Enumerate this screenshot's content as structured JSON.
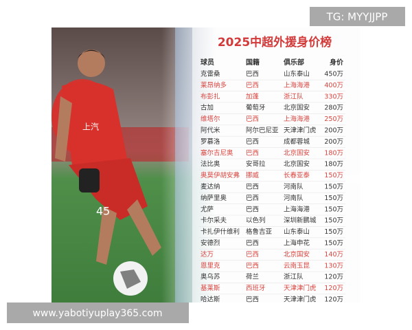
{
  "title": "2025中超外援身价榜",
  "watermark_top": "TG: MYYJJPP",
  "watermark_bottom": "www.yabotiyuplay365.com",
  "jersey_text": "上汽",
  "jersey_number": "45",
  "table": {
    "header": [
      "球员",
      "国籍",
      "俱乐部",
      "身价"
    ],
    "rows": [
      {
        "cells": [
          "克雷桑",
          "巴西",
          "山东泰山",
          "450万"
        ],
        "highlight": false
      },
      {
        "cells": [
          "莱昂纳多",
          "巴西",
          "上海海港",
          "400万"
        ],
        "highlight": true
      },
      {
        "cells": [
          "布彭扎",
          "加蓬",
          "浙江队",
          "330万"
        ],
        "highlight": true
      },
      {
        "cells": [
          "古加",
          "葡萄牙",
          "北京国安",
          "280万"
        ],
        "highlight": false
      },
      {
        "cells": [
          "维塔尔",
          "巴西",
          "上海海港",
          "250万"
        ],
        "highlight": true
      },
      {
        "cells": [
          "阿代米",
          "阿尔巴尼亚",
          "天津津门虎",
          "200万"
        ],
        "highlight": false
      },
      {
        "cells": [
          "罗慕洛",
          "巴西",
          "成都蓉城",
          "200万"
        ],
        "highlight": false
      },
      {
        "cells": [
          "塞尔吉尼奥",
          "巴西",
          "北京国安",
          "180万"
        ],
        "highlight": true
      },
      {
        "cells": [
          "法比奥",
          "安哥拉",
          "北京国安",
          "180万"
        ],
        "highlight": false
      },
      {
        "cells": [
          "奥莫伊胡安弗",
          "挪威",
          "长春亚泰",
          "150万"
        ],
        "highlight": true
      },
      {
        "cells": [
          "麦达纳",
          "巴西",
          "河南队",
          "150万"
        ],
        "highlight": false
      },
      {
        "cells": [
          "纳萨里奥",
          "巴西",
          "河南队",
          "150万"
        ],
        "highlight": false
      },
      {
        "cells": [
          "尤萨",
          "巴西",
          "上海海港",
          "150万"
        ],
        "highlight": false
      },
      {
        "cells": [
          "卡尔采夫",
          "以色列",
          "深圳新鹏城",
          "150万"
        ],
        "highlight": false
      },
      {
        "cells": [
          "卡扎伊什维利",
          "格鲁吉亚",
          "山东泰山",
          "150万"
        ],
        "highlight": false
      },
      {
        "cells": [
          "安德烈",
          "巴西",
          "上海申花",
          "150万"
        ],
        "highlight": false
      },
      {
        "cells": [
          "达万",
          "巴西",
          "北京国安",
          "140万"
        ],
        "highlight": true
      },
      {
        "cells": [
          "恩里克",
          "巴西",
          "云南玉昆",
          "130万"
        ],
        "highlight": true
      },
      {
        "cells": [
          "奥乌苏",
          "荷兰",
          "浙江队",
          "120万"
        ],
        "highlight": false
      },
      {
        "cells": [
          "基莱斯",
          "西班牙",
          "天津津门虎",
          "120万"
        ],
        "highlight": true
      },
      {
        "cells": [
          "哈达斯",
          "巴西",
          "天津津门虎",
          "120万"
        ],
        "highlight": false
      }
    ]
  }
}
